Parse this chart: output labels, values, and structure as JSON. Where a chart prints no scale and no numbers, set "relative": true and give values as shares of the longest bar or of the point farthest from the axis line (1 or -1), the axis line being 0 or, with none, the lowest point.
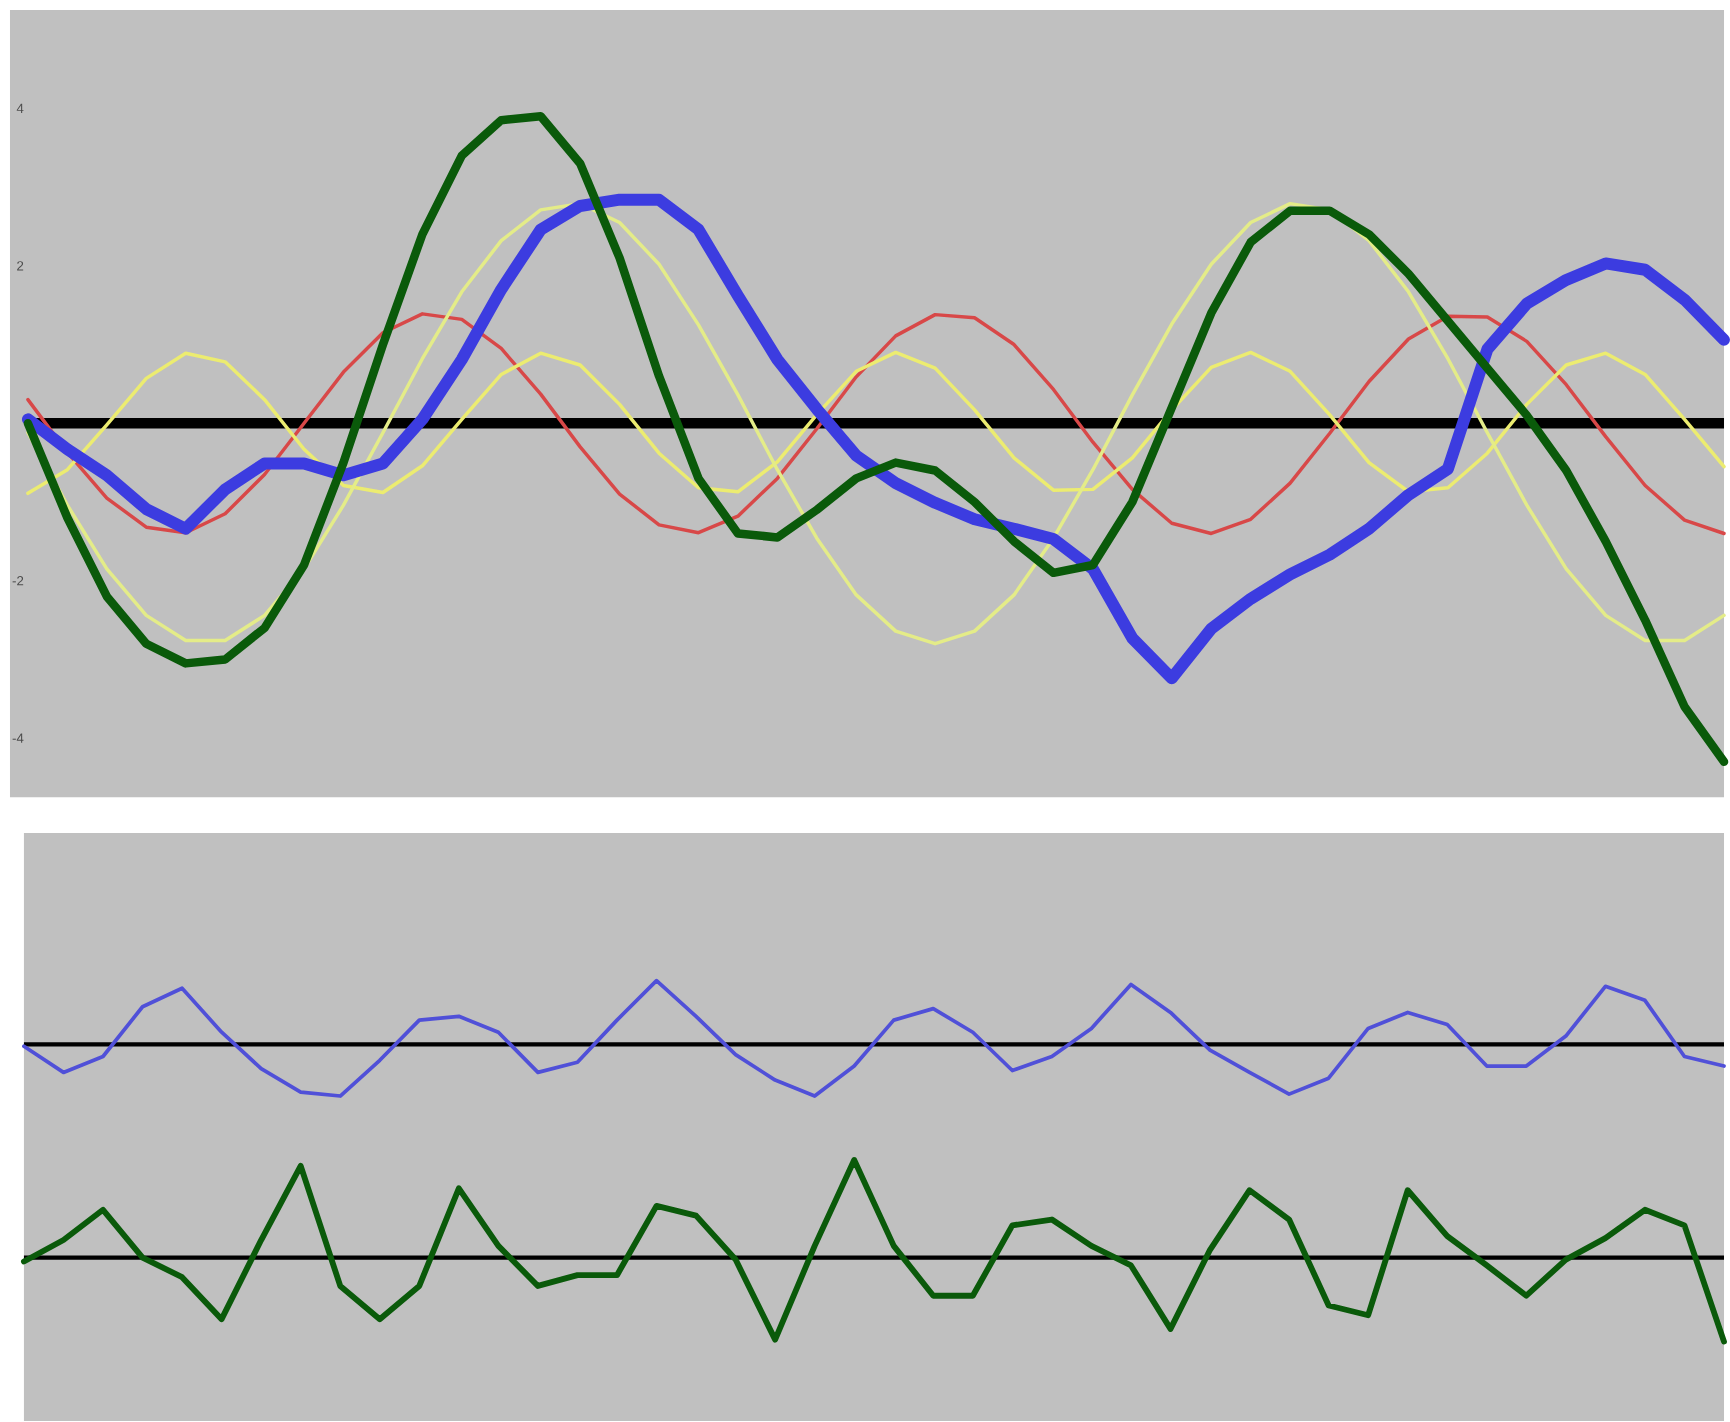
{
  "chart_data": [
    {
      "type": "line",
      "categories": [
        null,
        null,
        null,
        null,
        null,
        null,
        null,
        null,
        null,
        null,
        null,
        null,
        null,
        null,
        null,
        null,
        null,
        null,
        null,
        null,
        null,
        null,
        null,
        null,
        null,
        null,
        null,
        null,
        null,
        null,
        null,
        null,
        null,
        null,
        null,
        null,
        null,
        null,
        null,
        null,
        null,
        null,
        null,
        null
      ],
      "ylim": [
        -4.75,
        5.25
      ],
      "yticks": [
        4,
        2,
        -2,
        -4
      ],
      "ref_lines": [
        {
          "axis": "y",
          "value": 0,
          "color": "#000000"
        }
      ],
      "series": [
        {
          "color": "#d84848",
          "values": [
            0.3,
            -0.37,
            -0.95,
            -1.32,
            -1.39,
            -1.15,
            -0.65,
            0,
            0.65,
            1.15,
            1.39,
            1.32,
            0.95,
            0.37,
            -0.3,
            -0.9,
            -1.29,
            -1.39,
            -1.18,
            -0.7,
            -0.07,
            0.59,
            1.11,
            1.38,
            1.34,
            1.0,
            0.43,
            -0.24,
            -0.84,
            -1.27,
            -1.4,
            -1.22,
            -0.76,
            -0.13,
            0.53,
            1.07,
            1.36,
            1.35,
            1.04,
            0.49,
            -0.17,
            -0.79,
            -1.23,
            -1.4
          ]
        },
        {
          "color": "#ecec70",
          "values": [
            -0.89,
            -0.59,
            -0.02,
            0.57,
            0.89,
            0.78,
            0.3,
            -0.33,
            -0.79,
            -0.88,
            -0.54,
            0.05,
            0.62,
            0.89,
            0.74,
            0.24,
            -0.38,
            -0.82,
            -0.87,
            -0.49,
            0.11,
            0.66,
            0.9,
            0.7,
            0.17,
            -0.44,
            -0.85,
            -0.84,
            -0.44,
            0.17,
            0.71,
            0.9,
            0.66,
            0.11,
            -0.5,
            -0.87,
            -0.82,
            -0.38,
            0.24,
            0.74,
            0.89,
            0.62,
            0.05,
            -0.55
          ]
        },
        {
          "color": "#e4ec88",
          "values": [
            -0.12,
            -1.04,
            -1.85,
            -2.44,
            -2.76,
            -2.76,
            -2.44,
            -1.85,
            -1.04,
            -0.12,
            0.82,
            1.67,
            2.32,
            2.71,
            2.79,
            2.55,
            2.02,
            1.25,
            0.36,
            -0.59,
            -1.46,
            -2.18,
            -2.64,
            -2.8,
            -2.64,
            -2.18,
            -1.46,
            -0.59,
            0.36,
            1.26,
            2.02,
            2.55,
            2.79,
            2.71,
            2.32,
            1.67,
            0.82,
            -0.12,
            -1.04,
            -1.85,
            -2.44,
            -2.76,
            -2.76,
            -2.44
          ]
        },
        {
          "color": "#3c3ce0",
          "values": [
            0.05,
            -0.33,
            -0.66,
            -1.09,
            -1.34,
            -0.84,
            -0.51,
            -0.51,
            -0.66,
            -0.51,
            0.05,
            0.81,
            1.7,
            2.46,
            2.76,
            2.84,
            2.84,
            2.46,
            1.62,
            0.81,
            0.18,
            -0.41,
            -0.76,
            -1.01,
            -1.22,
            -1.34,
            -1.47,
            -1.85,
            -2.73,
            -3.24,
            -2.61,
            -2.23,
            -1.92,
            -1.67,
            -1.34,
            -0.91,
            -0.58,
            0.94,
            1.52,
            1.82,
            2.03,
            1.95,
            1.57,
            1.06
          ]
        },
        {
          "color": "#0a5a0a",
          "values": [
            0.0,
            -1.2,
            -2.2,
            -2.8,
            -3.05,
            -3.0,
            -2.6,
            -1.8,
            -0.5,
            1.0,
            2.4,
            3.4,
            3.85,
            3.9,
            3.3,
            2.1,
            0.6,
            -0.7,
            -1.4,
            -1.45,
            -1.1,
            -0.7,
            -0.5,
            -0.6,
            -1.0,
            -1.5,
            -1.9,
            -1.8,
            -1.0,
            0.2,
            1.4,
            2.3,
            2.7,
            2.7,
            2.4,
            1.9,
            1.3,
            0.7,
            0.1,
            -0.6,
            -1.5,
            -2.5,
            -3.6,
            -4.3
          ]
        }
      ]
    },
    {
      "type": "line",
      "relative": true,
      "categories": [
        null,
        null,
        null,
        null,
        null,
        null,
        null,
        null,
        null,
        null,
        null,
        null,
        null,
        null,
        null,
        null,
        null,
        null,
        null,
        null,
        null,
        null,
        null,
        null,
        null,
        null,
        null,
        null,
        null,
        null,
        null,
        null,
        null,
        null,
        null,
        null,
        null,
        null,
        null,
        null,
        null,
        null,
        null,
        null
      ],
      "series": [
        {
          "color": "#5050d8",
          "values": [
            -0.03,
            -0.44,
            -0.19,
            0.59,
            0.88,
            0.19,
            -0.38,
            -0.75,
            -0.81,
            -0.25,
            0.38,
            0.44,
            0.19,
            -0.44,
            -0.28,
            0.38,
            1,
            0.44,
            -0.16,
            -0.56,
            -0.81,
            -0.34,
            0.38,
            0.56,
            0.19,
            -0.41,
            -0.19,
            0.25,
            0.94,
            0.5,
            -0.09,
            -0.44,
            -0.78,
            -0.53,
            0.25,
            0.5,
            0.31,
            -0.34,
            -0.34,
            0.13,
            0.91,
            0.69,
            -0.19,
            -0.34
          ]
        }
      ]
    },
    {
      "type": "line",
      "relative": true,
      "categories": [
        null,
        null,
        null,
        null,
        null,
        null,
        null,
        null,
        null,
        null,
        null,
        null,
        null,
        null,
        null,
        null,
        null,
        null,
        null,
        null,
        null,
        null,
        null,
        null,
        null,
        null,
        null,
        null,
        null,
        null,
        null,
        null,
        null,
        null,
        null,
        null,
        null,
        null,
        null,
        null,
        null,
        null,
        null,
        null
      ],
      "series": [
        {
          "color": "#0a5a0a",
          "values": [
            -0.04,
            0.18,
            0.49,
            0,
            -0.2,
            -0.63,
            0.18,
            0.94,
            -0.29,
            -0.63,
            -0.29,
            0.71,
            0.12,
            -0.29,
            -0.18,
            -0.18,
            0.53,
            0.43,
            -0.02,
            -0.84,
            0.12,
            1,
            0.12,
            -0.39,
            -0.39,
            0.33,
            0.39,
            0.12,
            -0.08,
            -0.73,
            0.08,
            0.69,
            0.39,
            -0.49,
            -0.59,
            0.69,
            0.22,
            -0.08,
            -0.39,
            -0.02,
            0.2,
            0.49,
            0.33,
            -0.86
          ]
        }
      ]
    }
  ]
}
